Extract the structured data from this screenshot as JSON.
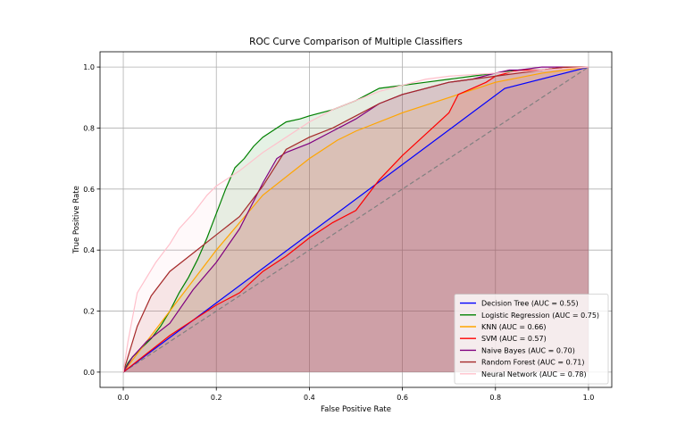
{
  "chart_data": {
    "type": "line",
    "title": "ROC Curve Comparison of Multiple Classifiers",
    "xlabel": "False Positive Rate",
    "ylabel": "True Positive Rate",
    "xlim": [
      -0.05,
      1.05
    ],
    "ylim": [
      -0.05,
      1.05
    ],
    "xticks": [
      "0.0",
      "0.2",
      "0.4",
      "0.6",
      "0.8",
      "1.0"
    ],
    "yticks": [
      "0.0",
      "0.2",
      "0.4",
      "0.6",
      "0.8",
      "1.0"
    ],
    "grid": true,
    "legend_position": "lower right",
    "reference_line": {
      "x": [
        0,
        1
      ],
      "y": [
        0,
        1
      ],
      "color": "#808080",
      "style": "dashed"
    },
    "series": [
      {
        "name": "Decision Tree (AUC = 0.55)",
        "color": "#0000ff",
        "x": [
          0,
          0.82,
          1
        ],
        "y": [
          0,
          0.93,
          1
        ]
      },
      {
        "name": "Logistic Regression (AUC = 0.75)",
        "color": "#008000",
        "x": [
          0,
          0.01,
          0.02,
          0.04,
          0.06,
          0.08,
          0.1,
          0.12,
          0.14,
          0.16,
          0.18,
          0.2,
          0.22,
          0.24,
          0.26,
          0.28,
          0.3,
          0.32,
          0.35,
          0.38,
          0.4,
          0.45,
          0.5,
          0.55,
          0.6,
          0.65,
          0.7,
          0.75,
          0.8,
          0.85,
          0.9,
          0.95,
          1
        ],
        "y": [
          0,
          0.03,
          0.05,
          0.08,
          0.11,
          0.15,
          0.2,
          0.26,
          0.31,
          0.37,
          0.44,
          0.52,
          0.6,
          0.67,
          0.7,
          0.74,
          0.77,
          0.79,
          0.82,
          0.83,
          0.84,
          0.86,
          0.89,
          0.93,
          0.94,
          0.95,
          0.96,
          0.97,
          0.98,
          0.99,
          0.99,
          1.0,
          1.0
        ]
      },
      {
        "name": "KNN (AUC = 0.66)",
        "color": "#ffa500",
        "x": [
          0,
          0.1,
          0.2,
          0.3,
          0.4,
          0.46,
          0.5,
          0.6,
          0.7,
          0.8,
          0.9,
          1
        ],
        "y": [
          0,
          0.2,
          0.4,
          0.58,
          0.7,
          0.76,
          0.79,
          0.85,
          0.9,
          0.95,
          0.98,
          1
        ]
      },
      {
        "name": "SVM (AUC = 0.57)",
        "color": "#ff0000",
        "x": [
          0,
          0.05,
          0.1,
          0.15,
          0.2,
          0.25,
          0.3,
          0.35,
          0.4,
          0.45,
          0.5,
          0.55,
          0.6,
          0.65,
          0.7,
          0.72,
          0.75,
          0.78,
          0.8,
          0.85,
          0.9,
          0.95,
          1
        ],
        "y": [
          0,
          0.06,
          0.12,
          0.17,
          0.22,
          0.26,
          0.33,
          0.38,
          0.44,
          0.49,
          0.53,
          0.63,
          0.71,
          0.78,
          0.85,
          0.91,
          0.93,
          0.95,
          0.97,
          0.99,
          0.99,
          1.0,
          1.0
        ]
      },
      {
        "name": "Naive Bayes (AUC = 0.70)",
        "color": "#800080",
        "x": [
          0,
          0.02,
          0.05,
          0.1,
          0.15,
          0.2,
          0.25,
          0.3,
          0.33,
          0.35,
          0.4,
          0.45,
          0.5,
          0.55,
          0.6,
          0.65,
          0.7,
          0.75,
          0.8,
          0.83,
          0.85,
          0.9,
          0.95,
          1
        ],
        "y": [
          0,
          0.05,
          0.1,
          0.16,
          0.27,
          0.36,
          0.47,
          0.62,
          0.7,
          0.72,
          0.75,
          0.79,
          0.83,
          0.88,
          0.91,
          0.93,
          0.95,
          0.96,
          0.98,
          0.99,
          0.99,
          1.0,
          1.0,
          1.0
        ]
      },
      {
        "name": "Random Forest (AUC = 0.71)",
        "color": "#a52a2a",
        "x": [
          0,
          0.03,
          0.06,
          0.1,
          0.15,
          0.2,
          0.25,
          0.3,
          0.35,
          0.4,
          0.45,
          0.5,
          0.55,
          0.6,
          0.65,
          0.7,
          0.75,
          0.8,
          0.85,
          0.9,
          0.95,
          1
        ],
        "y": [
          0,
          0.15,
          0.25,
          0.33,
          0.39,
          0.45,
          0.51,
          0.61,
          0.73,
          0.77,
          0.8,
          0.84,
          0.88,
          0.91,
          0.93,
          0.95,
          0.96,
          0.97,
          0.98,
          0.99,
          1.0,
          1.0
        ]
      },
      {
        "name": "Neural Network (AUC = 0.78)",
        "color": "#ffc0cb",
        "x": [
          0,
          0.01,
          0.02,
          0.03,
          0.05,
          0.07,
          0.1,
          0.12,
          0.15,
          0.18,
          0.2,
          0.25,
          0.3,
          0.35,
          0.4,
          0.45,
          0.5,
          0.55,
          0.6,
          0.65,
          0.7,
          0.8,
          0.9,
          1
        ],
        "y": [
          0,
          0.1,
          0.18,
          0.26,
          0.31,
          0.36,
          0.42,
          0.47,
          0.52,
          0.58,
          0.61,
          0.66,
          0.72,
          0.77,
          0.82,
          0.86,
          0.89,
          0.92,
          0.94,
          0.96,
          0.97,
          0.98,
          0.99,
          1
        ]
      }
    ]
  }
}
